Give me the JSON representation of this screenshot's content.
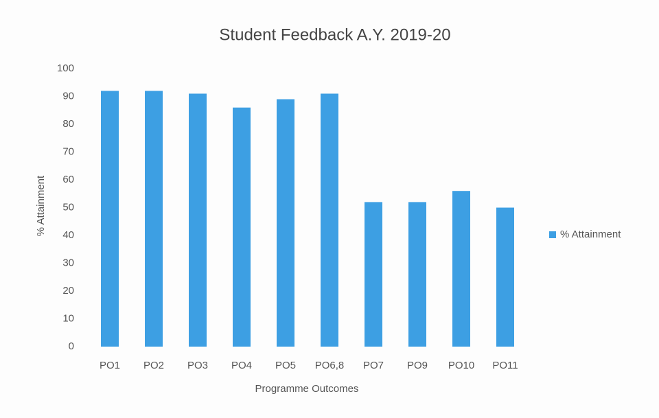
{
  "chart_data": {
    "type": "bar",
    "title": "Student Feedback A.Y. 2019-20",
    "x_label": "Programme Outcomes",
    "y_label": "% Attainment",
    "categories": [
      "PO1",
      "PO2",
      "PO3",
      "PO4",
      "PO5",
      "PO6,8",
      "PO7",
      "PO9",
      "PO10",
      "PO11"
    ],
    "series": [
      {
        "name": "% Attainment",
        "color": "#3d9fe3",
        "values": [
          92,
          92,
          91,
          86,
          89,
          91,
          52,
          52,
          56,
          50
        ]
      }
    ],
    "ylim": [
      0,
      100
    ],
    "yticks": [
      0,
      10,
      20,
      30,
      40,
      50,
      60,
      70,
      80,
      90,
      100
    ],
    "grid": false,
    "legend": "right"
  }
}
